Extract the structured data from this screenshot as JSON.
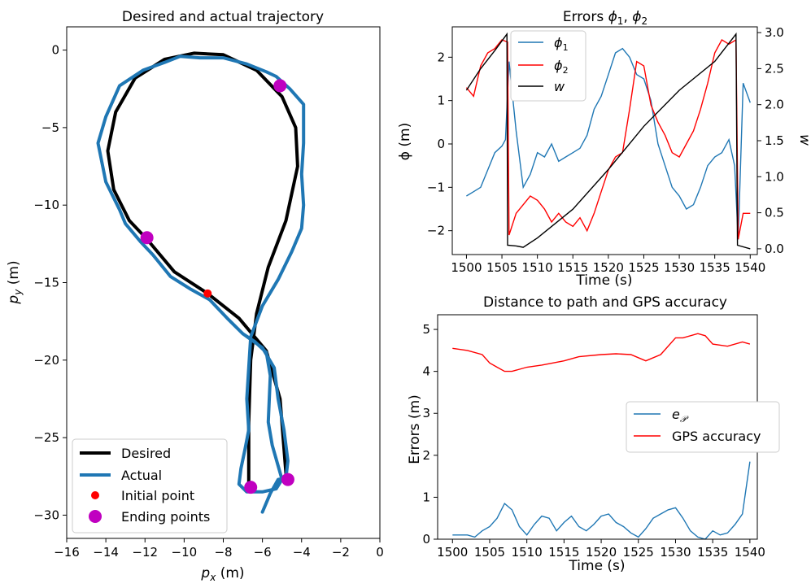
{
  "colors": {
    "desired": "#000000",
    "actual": "#1f77b4",
    "initial": "#ff0000",
    "ending": "#c000c0",
    "phi1": "#1f77b4",
    "phi2": "#ff0000",
    "w": "#000000",
    "ep": "#1f77b4",
    "gps": "#ff0000"
  },
  "chart_data": [
    {
      "type": "line",
      "title": "Desired and actual trajectory",
      "xlabel": "p_x (m)",
      "ylabel": "p_y (m)",
      "xlim": [
        -16,
        0
      ],
      "ylim": [
        -31.5,
        1.5
      ],
      "xticks": [
        -16,
        -14,
        -12,
        -10,
        -8,
        -6,
        -4,
        -2,
        0
      ],
      "yticks": [
        0,
        -5,
        -10,
        -15,
        -20,
        -25,
        -30
      ],
      "xtick_labels": [
        "−16",
        "−14",
        "−12",
        "−10",
        "−8",
        "−6",
        "−4",
        "−2",
        "0"
      ],
      "ytick_labels": [
        "0",
        "−5",
        "−10",
        "−15",
        "−20",
        "−25",
        "−30"
      ],
      "legend": [
        "Desired",
        "Actual",
        "Initial point",
        "Ending points"
      ],
      "legend_position": "lower-left",
      "series": [
        {
          "name": "Desired",
          "points": [
            [
              -6.7,
              -28.2
            ],
            [
              -6.7,
              -24
            ],
            [
              -6.6,
              -20
            ],
            [
              -6.3,
              -17
            ],
            [
              -5.7,
              -14
            ],
            [
              -4.8,
              -11
            ],
            [
              -4.2,
              -7.5
            ],
            [
              -4.3,
              -5
            ],
            [
              -5.0,
              -3
            ],
            [
              -6.3,
              -1.3
            ],
            [
              -8,
              -0.3
            ],
            [
              -9.5,
              -0.2
            ],
            [
              -11,
              -0.6
            ],
            [
              -12.5,
              -1.8
            ],
            [
              -13.5,
              -4
            ],
            [
              -13.9,
              -6.5
            ],
            [
              -13.6,
              -9
            ],
            [
              -12.8,
              -11
            ],
            [
              -11.9,
              -12.2
            ],
            [
              -10.5,
              -14.3
            ],
            [
              -8.8,
              -15.7
            ],
            [
              -7.2,
              -17.3
            ],
            [
              -5.8,
              -19.4
            ],
            [
              -5.1,
              -22.5
            ],
            [
              -4.8,
              -27.3
            ]
          ]
        },
        {
          "name": "Actual",
          "points": [
            [
              -6.0,
              -29.8
            ],
            [
              -5.6,
              -28.6
            ],
            [
              -5.2,
              -27.7
            ],
            [
              -4.8,
              -27.6
            ],
            [
              -4.7,
              -26.5
            ],
            [
              -4.9,
              -24.5
            ],
            [
              -5.2,
              -22.5
            ],
            [
              -5.4,
              -20.5
            ],
            [
              -6.0,
              -19.2
            ],
            [
              -7.0,
              -18.3
            ],
            [
              -7.8,
              -17.3
            ],
            [
              -8.7,
              -16.1
            ],
            [
              -9.7,
              -15.4
            ],
            [
              -10.7,
              -14.6
            ],
            [
              -11.6,
              -13.2
            ],
            [
              -12.2,
              -12.4
            ],
            [
              -13.0,
              -11.2
            ],
            [
              -13.3,
              -10.3
            ],
            [
              -14.0,
              -8.5
            ],
            [
              -14.4,
              -6.0
            ],
            [
              -14.0,
              -4.3
            ],
            [
              -13.3,
              -2.3
            ],
            [
              -12.1,
              -1.3
            ],
            [
              -11.0,
              -0.8
            ],
            [
              -10.2,
              -0.4
            ],
            [
              -9.2,
              -0.5
            ],
            [
              -8.0,
              -0.5
            ],
            [
              -6.8,
              -0.9
            ],
            [
              -5.8,
              -1.4
            ],
            [
              -5.3,
              -1.7
            ],
            [
              -4.6,
              -2.5
            ],
            [
              -3.9,
              -3.5
            ],
            [
              -3.9,
              -4.8
            ],
            [
              -3.9,
              -6.0
            ],
            [
              -4.0,
              -8.0
            ],
            [
              -3.9,
              -10.0
            ],
            [
              -4.0,
              -11.5
            ],
            [
              -4.5,
              -13.0
            ],
            [
              -5.2,
              -14.8
            ],
            [
              -6.0,
              -16.5
            ],
            [
              -6.6,
              -18.5
            ],
            [
              -6.7,
              -20.5
            ],
            [
              -6.8,
              -22.5
            ],
            [
              -6.7,
              -24.5
            ],
            [
              -6.9,
              -25.8
            ],
            [
              -7.1,
              -27.0
            ],
            [
              -7.2,
              -28.0
            ],
            [
              -6.8,
              -28.5
            ],
            [
              -6.0,
              -28.5
            ],
            [
              -5.3,
              -28.3
            ],
            [
              -5.0,
              -27.7
            ],
            [
              -5.5,
              -25.5
            ],
            [
              -5.7,
              -24.0
            ],
            [
              -5.6,
              -21.0
            ],
            [
              -5.8,
              -19.5
            ],
            [
              -6.4,
              -18.8
            ],
            [
              -7.0,
              -18.3
            ]
          ]
        }
      ],
      "initial_point": [
        -8.8,
        -15.7
      ],
      "ending_points": [
        [
          -5.1,
          -2.3
        ],
        [
          -11.9,
          -12.1
        ],
        [
          -6.6,
          -28.2
        ],
        [
          -4.7,
          -27.7
        ]
      ]
    },
    {
      "type": "line",
      "title": "Errors φ1, φ2",
      "xlabel": "Time (s)",
      "ylabel": "ϕ (m)",
      "ylabel_right": "w",
      "xlim": [
        1498,
        1541
      ],
      "ylim": [
        -2.55,
        2.7
      ],
      "y2lim": [
        -0.08,
        3.08
      ],
      "xticks": [
        1500,
        1505,
        1510,
        1515,
        1520,
        1525,
        1530,
        1535,
        1540
      ],
      "yticks": [
        -2,
        -1,
        0,
        1,
        2
      ],
      "y2ticks": [
        0.0,
        0.5,
        1.0,
        1.5,
        2.0,
        2.5,
        3.0
      ],
      "ytick_labels": [
        "−2",
        "−1",
        "0",
        "1",
        "2"
      ],
      "y2tick_labels": [
        "0.0",
        "0.5",
        "1.0",
        "1.5",
        "2.0",
        "2.5",
        "3.0"
      ],
      "legend": [
        "ϕ1",
        "ϕ2",
        "w"
      ],
      "legend_position": "upper-left",
      "series": [
        {
          "name": "phi1",
          "x": [
            1500,
            1501,
            1502,
            1503,
            1504,
            1505,
            1505.5,
            1506,
            1507,
            1508,
            1509,
            1510,
            1511,
            1512,
            1513,
            1514,
            1515,
            1516,
            1517,
            1518,
            1519,
            1520,
            1521,
            1522,
            1523,
            1524,
            1525,
            1526,
            1527,
            1528,
            1529,
            1530,
            1531,
            1532,
            1533,
            1534,
            1535,
            1536,
            1537,
            1537.8,
            1538.3,
            1539,
            1540
          ],
          "y": [
            -1.2,
            -1.1,
            -1.0,
            -0.6,
            -0.2,
            -0.05,
            0.1,
            1.9,
            0.3,
            -1.0,
            -0.7,
            -0.2,
            -0.3,
            0.0,
            -0.4,
            -0.3,
            -0.2,
            -0.1,
            0.2,
            0.8,
            1.1,
            1.6,
            2.1,
            2.2,
            2.0,
            1.6,
            1.5,
            1.0,
            0.0,
            -0.5,
            -1.0,
            -1.2,
            -1.5,
            -1.4,
            -1.0,
            -0.5,
            -0.3,
            -0.2,
            0.1,
            -0.5,
            -2.2,
            1.4,
            0.95
          ]
        },
        {
          "name": "phi2",
          "x": [
            1500,
            1501,
            1502,
            1503,
            1504,
            1505,
            1505.8,
            1506,
            1507,
            1508,
            1509,
            1510,
            1511,
            1512,
            1513,
            1514,
            1515,
            1516,
            1517,
            1518,
            1519,
            1520,
            1521,
            1522,
            1523,
            1524,
            1525,
            1526,
            1527,
            1528,
            1529,
            1530,
            1531,
            1532,
            1533,
            1534,
            1535,
            1536,
            1537,
            1538,
            1538.3,
            1539,
            1540
          ],
          "y": [
            1.3,
            1.1,
            1.8,
            2.1,
            2.2,
            2.4,
            2.35,
            -2.1,
            -1.6,
            -1.4,
            -1.2,
            -1.3,
            -1.5,
            -1.8,
            -1.6,
            -1.8,
            -1.9,
            -1.7,
            -2.0,
            -1.6,
            -1.1,
            -0.6,
            -0.3,
            -0.2,
            0.8,
            1.9,
            1.8,
            0.9,
            0.5,
            0.2,
            -0.2,
            -0.3,
            0.0,
            0.3,
            0.8,
            1.4,
            2.1,
            2.4,
            2.3,
            2.4,
            -2.2,
            -1.6,
            -1.6
          ]
        },
        {
          "name": "w",
          "x": [
            1500,
            1502,
            1504,
            1505.7,
            1505.8,
            1507,
            1508,
            1510,
            1515,
            1520,
            1525,
            1530,
            1535,
            1538,
            1538.2,
            1540
          ],
          "y": [
            2.2,
            2.5,
            2.75,
            2.98,
            0.05,
            0.04,
            0.02,
            0.15,
            0.55,
            1.1,
            1.7,
            2.2,
            2.6,
            2.98,
            0.05,
            0.0
          ]
        }
      ]
    },
    {
      "type": "line",
      "title": "Distance to path and GPS accuracy",
      "xlabel": "Time (s)",
      "ylabel": "Errors (m)",
      "xlim": [
        1498,
        1541
      ],
      "ylim": [
        0,
        5.35
      ],
      "xticks": [
        1500,
        1505,
        1510,
        1515,
        1520,
        1525,
        1530,
        1535,
        1540
      ],
      "yticks": [
        0,
        1,
        2,
        3,
        4,
        5
      ],
      "legend": [
        "e_P",
        "GPS accuracy"
      ],
      "legend_position": "center-right",
      "series": [
        {
          "name": "e_P",
          "x": [
            1500,
            1502,
            1503,
            1504,
            1505,
            1506,
            1507,
            1508,
            1509,
            1510,
            1511,
            1512,
            1513,
            1514,
            1515,
            1516,
            1517,
            1518,
            1519,
            1520,
            1521,
            1522,
            1523,
            1524,
            1525,
            1526,
            1527,
            1528,
            1529,
            1530,
            1531,
            1532,
            1533,
            1534,
            1535,
            1536,
            1537,
            1538,
            1539,
            1540
          ],
          "y": [
            0.1,
            0.1,
            0.05,
            0.2,
            0.3,
            0.5,
            0.85,
            0.7,
            0.3,
            0.1,
            0.35,
            0.55,
            0.5,
            0.2,
            0.4,
            0.55,
            0.3,
            0.2,
            0.35,
            0.55,
            0.6,
            0.4,
            0.3,
            0.15,
            0.05,
            0.25,
            0.5,
            0.6,
            0.7,
            0.75,
            0.5,
            0.2,
            0.05,
            0.0,
            0.2,
            0.1,
            0.15,
            0.35,
            0.6,
            1.85
          ]
        },
        {
          "name": "GPS accuracy",
          "x": [
            1500,
            1502,
            1504,
            1505,
            1506,
            1507,
            1508,
            1510,
            1512,
            1515,
            1517,
            1520,
            1522,
            1524,
            1526,
            1528,
            1530,
            1531,
            1533,
            1534,
            1535,
            1537,
            1539,
            1540
          ],
          "y": [
            4.55,
            4.5,
            4.4,
            4.2,
            4.1,
            4.0,
            4.0,
            4.1,
            4.15,
            4.25,
            4.35,
            4.4,
            4.42,
            4.4,
            4.25,
            4.4,
            4.8,
            4.8,
            4.9,
            4.85,
            4.65,
            4.6,
            4.7,
            4.65
          ]
        }
      ]
    }
  ]
}
